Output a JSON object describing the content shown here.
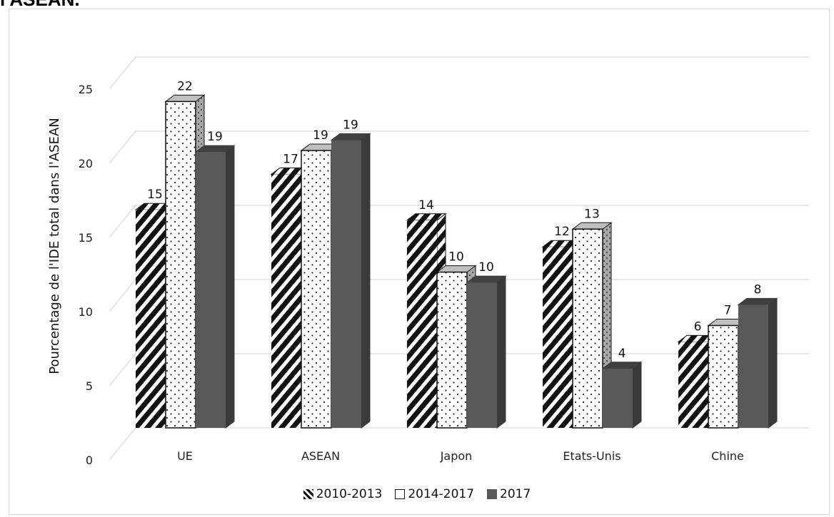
{
  "header": {
    "title": "l'ASEAN."
  },
  "chart_data": {
    "type": "bar",
    "title": "",
    "xlabel": "",
    "ylabel": "Pourcentage de l'IDE total dans l'ASEAN",
    "ylim": [
      0,
      25
    ],
    "yticks": [
      0,
      5,
      10,
      15,
      20,
      25
    ],
    "grid": true,
    "legend_position": "bottom",
    "categories": [
      "UE",
      "ASEAN",
      "Japon",
      "Etats-Unis",
      "Chine"
    ],
    "series": [
      {
        "name": "2010-2013",
        "values": [
          14.7,
          17.1,
          14.0,
          12.2,
          5.8
        ],
        "labels": [
          "15",
          "17",
          "14",
          "12",
          "6"
        ],
        "pattern": "diagonal-stripes",
        "color": "#111111"
      },
      {
        "name": "2014-2017",
        "values": [
          22.0,
          18.7,
          10.5,
          13.4,
          6.9
        ],
        "labels": [
          "22",
          "19",
          "10",
          "13",
          "7"
        ],
        "pattern": "dots",
        "color": "#ffffff"
      },
      {
        "name": "2017",
        "values": [
          18.6,
          19.4,
          9.8,
          4.0,
          8.3
        ],
        "labels": [
          "19",
          "19",
          "10",
          "4",
          "8"
        ],
        "pattern": "solid",
        "color": "#595959"
      }
    ]
  }
}
